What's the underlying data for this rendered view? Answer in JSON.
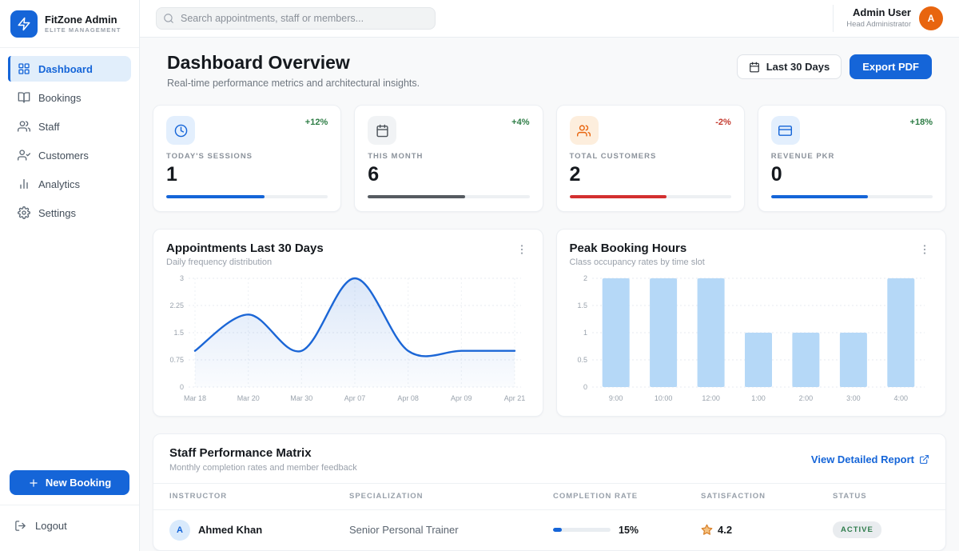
{
  "app": {
    "name": "FitZone Admin",
    "tagline": "ELITE MANAGEMENT"
  },
  "colors": {
    "primary": "#1565d8",
    "green": "#2e7d46",
    "red": "#c43a2f",
    "avatar_orange": "#e8650f"
  },
  "topbar": {
    "search_placeholder": "Search appointments, staff or members...",
    "user": {
      "name": "Admin User",
      "role": "Head Administrator",
      "avatar_initial": "A"
    }
  },
  "sidebar": {
    "items": [
      {
        "label": "Dashboard",
        "icon": "grid-icon",
        "active": true
      },
      {
        "label": "Bookings",
        "icon": "book-open-icon",
        "active": false
      },
      {
        "label": "Staff",
        "icon": "users-icon",
        "active": false
      },
      {
        "label": "Customers",
        "icon": "user-check-icon",
        "active": false
      },
      {
        "label": "Analytics",
        "icon": "bar-chart-icon",
        "active": false
      },
      {
        "label": "Settings",
        "icon": "gear-icon",
        "active": false
      }
    ],
    "new_booking_label": "New Booking",
    "logout_label": "Logout"
  },
  "header": {
    "title": "Dashboard Overview",
    "subtitle": "Real-time performance metrics and architectural insights.",
    "date_range_label": "Last 30 Days",
    "export_label": "Export PDF"
  },
  "stats": [
    {
      "label": "TODAY'S SESSIONS",
      "value": "1",
      "trend": "+12%",
      "trend_color": "#2e7d46",
      "icon": "clock-icon",
      "icon_color": "#1565d8",
      "icon_bg": "#e3effd",
      "bar_color": "#1565d8",
      "progress": 61
    },
    {
      "label": "THIS MONTH",
      "value": "6",
      "trend": "+4%",
      "trend_color": "#2e7d46",
      "icon": "calendar-icon",
      "icon_color": "#4a5158",
      "icon_bg": "#f1f3f5",
      "bar_color": "#565b61",
      "progress": 60
    },
    {
      "label": "TOTAL CUSTOMERS",
      "value": "2",
      "trend": "-2%",
      "trend_color": "#c43a2f",
      "icon": "users-icon",
      "icon_color": "#e8650f",
      "icon_bg": "#fdeedd",
      "bar_color": "#d32f2f",
      "progress": 60
    },
    {
      "label": "REVENUE PKR",
      "value": "0",
      "trend": "+18%",
      "trend_color": "#2e7d46",
      "icon": "credit-card-icon",
      "icon_color": "#1565d8",
      "icon_bg": "#e3effd",
      "bar_color": "#1565d8",
      "progress": 60
    }
  ],
  "chart_data": [
    {
      "type": "line",
      "title": "Appointments Last 30 Days",
      "subtitle": "Daily frequency distribution",
      "x": [
        "Mar 18",
        "Mar 20",
        "Mar 30",
        "Apr 07",
        "Apr 08",
        "Apr 09",
        "Apr 21"
      ],
      "values": [
        1,
        2,
        1,
        3,
        1,
        1,
        1
      ],
      "yticks": [
        0,
        0.75,
        1.5,
        2.25,
        3
      ],
      "ylim": [
        0,
        3
      ],
      "line_color": "#1b66d6",
      "fill": "gradient",
      "grid": "dashed"
    },
    {
      "type": "bar",
      "title": "Peak Booking Hours",
      "subtitle": "Class occupancy rates by time slot",
      "categories": [
        "9:00",
        "10:00",
        "12:00",
        "1:00",
        "2:00",
        "3:00",
        "4:00"
      ],
      "values": [
        2,
        2,
        2,
        1,
        1,
        1,
        2
      ],
      "yticks": [
        0,
        0.5,
        1,
        1.5,
        2
      ],
      "ylim": [
        0,
        2
      ],
      "bar_color": "#b5d8f7",
      "grid": "dashed"
    }
  ],
  "staff": {
    "title": "Staff Performance Matrix",
    "subtitle": "Monthly completion rates and member feedback",
    "link_label": "View Detailed Report",
    "columns": [
      "INSTRUCTOR",
      "SPECIALIZATION",
      "COMPLETION RATE",
      "SATISFACTION",
      "STATUS"
    ],
    "rows": [
      {
        "initial": "A",
        "name": "Ahmed Khan",
        "specialization": "Senior Personal Trainer",
        "completion": "15%",
        "completion_pct": 15,
        "satisfaction": "4.2",
        "status": "ACTIVE"
      }
    ]
  }
}
